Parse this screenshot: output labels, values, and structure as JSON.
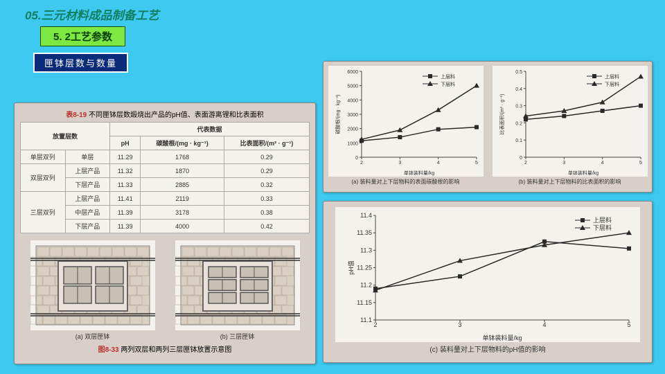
{
  "header": "05.三元材料成品制备工艺",
  "subheader": "5. 2工艺参数",
  "tag": "匣钵层数与数量",
  "table": {
    "title_label": "表8-19",
    "title_text": "不同匣钵层数煅烧出产品的pH值、表面游离锂和比表面积",
    "col_layers": "放置层数",
    "col_rep": "代表数据",
    "col_ph": "pH",
    "col_carb": "碳酸根/(mg · kg⁻¹)",
    "col_area": "比表面积/(m² · g⁻¹)",
    "g1": "单层双列",
    "g1r1": "单层",
    "g2": "双层双列",
    "g2r1": "上层产品",
    "g2r2": "下层产品",
    "g3": "三层双列",
    "g3r1": "上层产品",
    "g3r2": "中层产品",
    "g3r3": "下层产品",
    "d": [
      [
        "11.29",
        "1768",
        "0.29"
      ],
      [
        "11.32",
        "1870",
        "0.29"
      ],
      [
        "11.33",
        "2885",
        "0.32"
      ],
      [
        "11.41",
        "2119",
        "0.33"
      ],
      [
        "11.39",
        "3178",
        "0.38"
      ],
      [
        "11.39",
        "4000",
        "0.42"
      ]
    ]
  },
  "diagrams": {
    "a": "(a) 双层匣钵",
    "b": "(b) 三层匣钵",
    "caption_label": "图8-33",
    "caption_text": "两列双层和两列三层匣钵放置示意图",
    "brick_fill": "#d9cfc3",
    "brick_stroke": "#b0a090",
    "inner_fill": "#e8e2da",
    "box_fill": "#c8c0b4"
  },
  "charts": {
    "legend_upper": "上层料",
    "legend_lower": "下层料",
    "xlabel": "单钵装料量/kg",
    "upper_color": "#2a2a2a",
    "lower_color": "#2a2a2a",
    "bg": "#f5f2ed",
    "axis_color": "#444",
    "a": {
      "ylabel": "碳酸根/(mg · kg⁻¹)",
      "caption": "(a) 装料量对上下层物料的表面碳酸根的影响",
      "x": [
        2,
        3,
        4,
        5
      ],
      "ylim": [
        0,
        6000
      ],
      "yticks": [
        0,
        1000,
        2000,
        3000,
        4000,
        5000,
        6000
      ],
      "upper": [
        1150,
        1400,
        1950,
        2100
      ],
      "lower": [
        1250,
        1900,
        3300,
        5000
      ]
    },
    "b": {
      "ylabel": "比表面积/(m² · g⁻¹)",
      "caption": "(b) 装料量对上下层物料的比表面积的影响",
      "x": [
        2,
        3,
        4,
        5
      ],
      "ylim": [
        0,
        0.5
      ],
      "yticks": [
        0,
        0.1,
        0.2,
        0.3,
        0.4,
        0.5
      ],
      "upper": [
        0.22,
        0.24,
        0.27,
        0.3
      ],
      "lower": [
        0.24,
        0.27,
        0.32,
        0.47
      ]
    },
    "c": {
      "ylabel": "pH值",
      "caption": "(c) 装料量对上下层物料的pH值的影响",
      "x": [
        2,
        3,
        4,
        5
      ],
      "ylim": [
        11.1,
        11.4
      ],
      "yticks": [
        11.1,
        11.15,
        11.2,
        11.25,
        11.3,
        11.35,
        11.4
      ],
      "upper": [
        11.19,
        11.225,
        11.325,
        11.305
      ],
      "lower": [
        11.185,
        11.27,
        11.315,
        11.35
      ]
    }
  }
}
